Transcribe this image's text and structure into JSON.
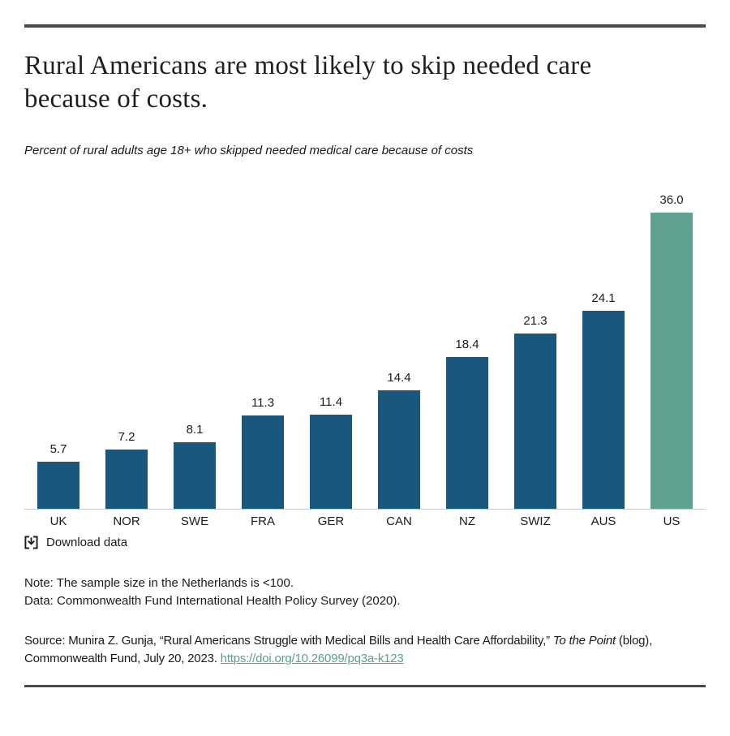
{
  "header": {
    "title_lines": [
      "Rural Americans are most likely to skip needed care",
      "because of costs."
    ],
    "subtitle": "Percent of rural adults age 18+ who skipped needed medical care because of costs"
  },
  "chart_data": {
    "type": "bar",
    "title": "Rural Americans are most likely to skip needed care because of costs.",
    "subtitle": "Percent of rural adults age 18+ who skipped needed medical care because of costs",
    "categories": [
      "UK",
      "NOR",
      "SWE",
      "FRA",
      "GER",
      "CAN",
      "NZ",
      "SWIZ",
      "AUS",
      "US"
    ],
    "values": [
      5.7,
      7.2,
      8.1,
      11.3,
      11.4,
      14.4,
      18.4,
      21.3,
      24.1,
      36.0
    ],
    "value_labels": [
      "5.7",
      "7.2",
      "8.1",
      "11.3",
      "11.4",
      "14.4",
      "18.4",
      "21.3",
      "24.1",
      "36.0"
    ],
    "unit": "percent",
    "xlabel": "",
    "ylabel": "",
    "ylim": [
      0,
      36
    ],
    "grid": false,
    "legend": false,
    "bar_color": "#19587c",
    "highlight_color": "#5fa291",
    "highlight_index": 9,
    "axis_line_color": "#c9c9c9"
  },
  "download": {
    "label": "Download data"
  },
  "notes": {
    "note_line": "Note: The sample size in the Netherlands is <100.",
    "data_line": "Data: Commonwealth Fund International Health Policy Survey (2020)."
  },
  "source": {
    "prefix": "Source: Munira Z. Gunja, “Rural Americans Struggle with Medical Bills and Health Care Affordability,” ",
    "italic": "To the Point",
    "middle": " (blog), Commonwealth Fund, July 20, 2023. ",
    "link_text": "https://doi.org/10.26099/pq3a-k123",
    "link_color": "#59a18f"
  }
}
